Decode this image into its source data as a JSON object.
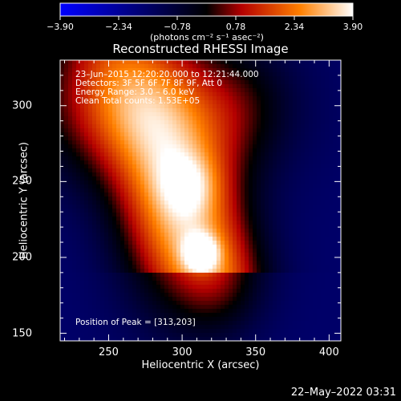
{
  "chart_data": {
    "type": "heatmap",
    "title": "Reconstructed RHESSI Image",
    "xlabel": "Heliocentric X (arcsec)",
    "ylabel": "Heliocentric Y (arcsec)",
    "xlim": [
      217,
      408
    ],
    "ylim": [
      145,
      330
    ],
    "x_ticks": [
      250,
      300,
      350,
      400
    ],
    "x_tick_labels": [
      "250",
      "300",
      "350",
      "400"
    ],
    "y_ticks": [
      150,
      200,
      250,
      300
    ],
    "y_tick_labels": [
      "150",
      "200",
      "250",
      "300"
    ],
    "colorbar": {
      "range": [
        -3.9,
        3.9
      ],
      "tick_values": [
        -3.9,
        -2.34,
        -0.78,
        0.78,
        2.34,
        3.9
      ],
      "tick_labels": [
        "−3.90",
        "−2.34",
        "−0.78",
        "0.78",
        "2.34",
        "3.90"
      ],
      "units": "(photons cm⁻² s⁻¹ asec⁻²)"
    },
    "annotations": [
      "23–Jun–2015 12:20:20.000 to 12:21:44.000",
      "Detectors: 3F 5F 6F 7F 8F 9F, Att 0",
      "Energy Range: 3.0 – 6.0 keV",
      "Clean    Total counts: 1.53E+05"
    ],
    "peak_label": "Position of Peak = [313,203]",
    "peak": [
      313,
      203
    ],
    "sources": [
      {
        "x": 313,
        "y": 203,
        "sx": 8,
        "sy": 8,
        "amp": 2.4
      },
      {
        "x": 305,
        "y": 248,
        "sx": 14,
        "sy": 14,
        "amp": 1.2
      },
      {
        "x": 300,
        "y": 228,
        "sx": 30,
        "sy": 45,
        "amp": 2.8
      },
      {
        "x": 275,
        "y": 300,
        "sx": 55,
        "sy": 35,
        "amp": 2.8
      },
      {
        "x": 345,
        "y": 300,
        "sx": 20,
        "sy": 25,
        "amp": 0.5
      },
      {
        "x": 325,
        "y": 185,
        "sx": 22,
        "sy": 25,
        "amp": 1.3
      }
    ],
    "background": -1.6
  },
  "footer_timestamp": "22–May–2022 03:31"
}
